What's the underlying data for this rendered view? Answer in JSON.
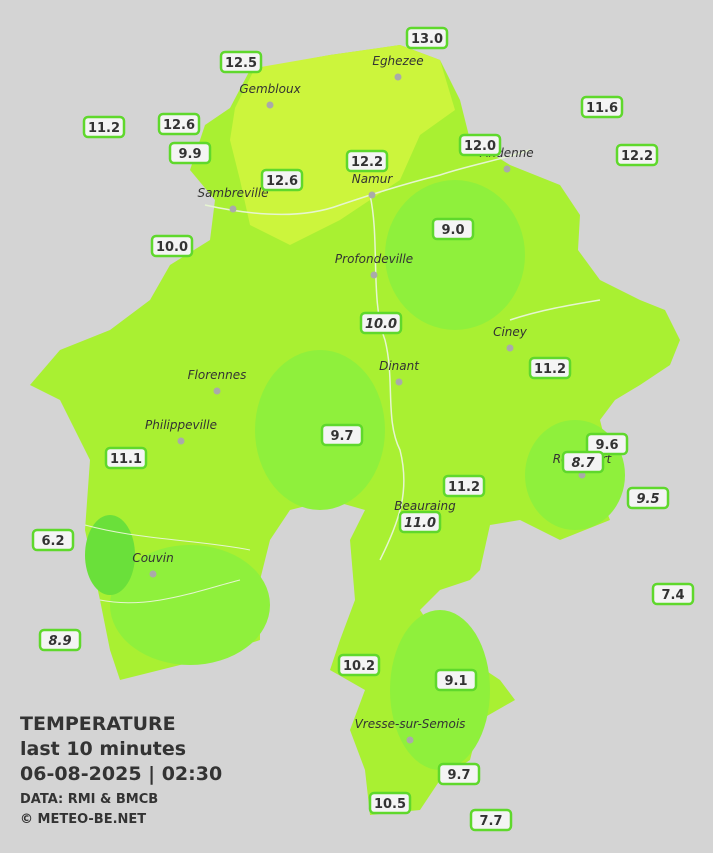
{
  "cities": [
    "Eghezee",
    "Gembloux",
    "Andenne",
    "Namur",
    "Sambreville",
    "Profondeville",
    "Ciney",
    "Dinant",
    "Florennes",
    "Philippeville",
    "Rochefort",
    "Beauraing",
    "Couvin",
    "Vresse-sur-Semois"
  ],
  "stations": [
    {
      "label": "13.0",
      "italic": false
    },
    {
      "label": "12.5",
      "italic": false
    },
    {
      "label": "11.2",
      "italic": false
    },
    {
      "label": "12.6",
      "italic": false
    },
    {
      "label": "9.9",
      "italic": false
    },
    {
      "label": "11.6",
      "italic": false
    },
    {
      "label": "12.0",
      "italic": false
    },
    {
      "label": "12.2",
      "italic": false
    },
    {
      "label": "12.2",
      "italic": false
    },
    {
      "label": "12.6",
      "italic": false
    },
    {
      "label": "10.0",
      "italic": false
    },
    {
      "label": "9.0",
      "italic": false
    },
    {
      "label": "10.0",
      "italic": true
    },
    {
      "label": "11.2",
      "italic": false
    },
    {
      "label": "9.7",
      "italic": false
    },
    {
      "label": "9.6",
      "italic": false
    },
    {
      "label": "8.7",
      "italic": true
    },
    {
      "label": "11.1",
      "italic": false
    },
    {
      "label": "9.5",
      "italic": true
    },
    {
      "label": "11.2",
      "italic": false
    },
    {
      "label": "11.0",
      "italic": true
    },
    {
      "label": "6.2",
      "italic": false
    },
    {
      "label": "7.4",
      "italic": false
    },
    {
      "label": "8.9",
      "italic": true
    },
    {
      "label": "10.2",
      "italic": false
    },
    {
      "label": "9.1",
      "italic": false
    },
    {
      "label": "9.7",
      "italic": false
    },
    {
      "label": "10.5",
      "italic": false
    },
    {
      "label": "7.7",
      "italic": false
    }
  ],
  "legend": {
    "title": "TEMPERATURE",
    "period": "last 10 minutes",
    "datetime": "06-08-2025  |  02:30",
    "source": "DATA: RMI & BMCB",
    "copyright": "© METEO-BE.NET"
  }
}
